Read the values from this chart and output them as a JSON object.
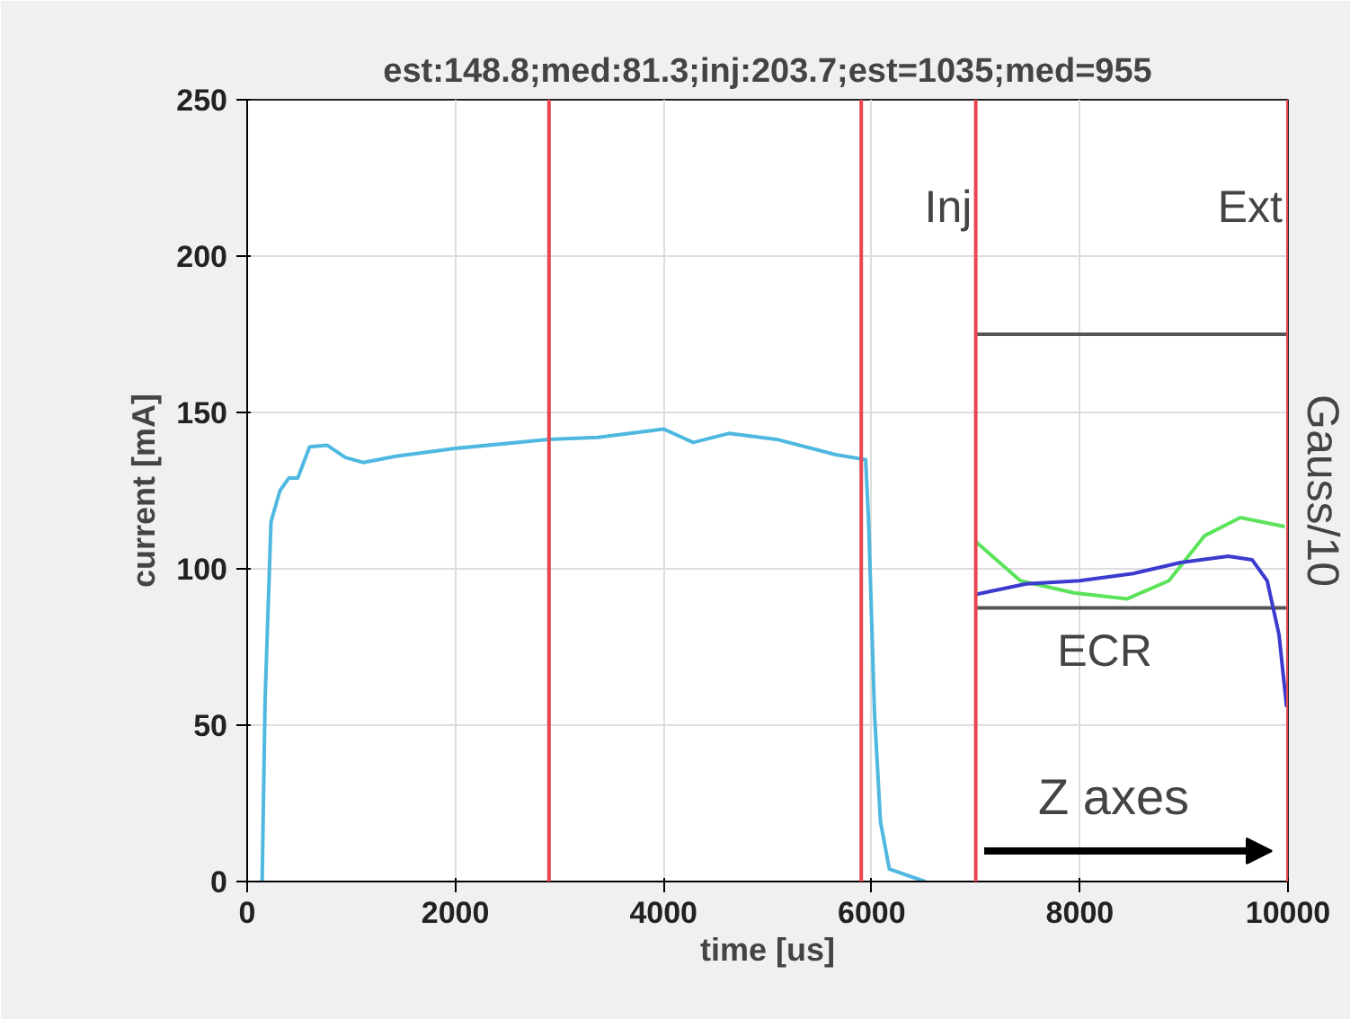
{
  "chart_data": {
    "type": "line",
    "title": "est:148.8;med:81.3;inj:203.7;est=1035;med=955",
    "xlabel": "time [us]",
    "ylabel": "current [mA]",
    "xlim": [
      0,
      10000
    ],
    "ylim": [
      0,
      250
    ],
    "xticks": [
      0,
      2000,
      4000,
      6000,
      8000,
      10000
    ],
    "yticks": [
      0,
      50,
      100,
      150,
      200,
      250
    ],
    "grid": true,
    "series": [
      {
        "color": "#4fb8e0",
        "x": [
          144,
          172,
          229,
          315,
          400,
          486,
          600,
          771,
          943,
          1114,
          1428,
          2000,
          2896,
          3371,
          4000,
          4286,
          4628,
          5085,
          5656,
          5942,
          5971,
          6027,
          6085,
          6170,
          6512
        ],
        "values": [
          0,
          58,
          115,
          125,
          129,
          129,
          139,
          139.5,
          135.6,
          134,
          136,
          138.5,
          141.4,
          142,
          144.7,
          140.4,
          143.3,
          141.4,
          136.5,
          134.9,
          115,
          54,
          19,
          4,
          0
        ]
      },
      {
        "color": "#555555",
        "x": [
          7000,
          10000
        ],
        "values": [
          175,
          175
        ]
      },
      {
        "color": "#555555",
        "x": [
          7000,
          10000
        ],
        "values": [
          87.5,
          87.5
        ]
      },
      {
        "color": "#5be35b",
        "x": [
          7000,
          7428,
          7942,
          8456,
          8856,
          9200,
          9542,
          9970
        ],
        "values": [
          108.7,
          96.2,
          92.3,
          90.4,
          96.2,
          110.6,
          116.4,
          113.5
        ]
      },
      {
        "color": "#3b3bcf",
        "x": [
          7000,
          7485,
          8000,
          8514,
          8970,
          9426,
          9655,
          9800,
          9914,
          9987
        ],
        "values": [
          91.8,
          95.2,
          96.2,
          98.5,
          102,
          104,
          102.9,
          96.2,
          78.9,
          55.8
        ]
      }
    ],
    "ref_lines": [
      {
        "axis": "x",
        "value": 2900,
        "color": "#e8474f"
      },
      {
        "axis": "x",
        "value": 5900,
        "color": "#e8474f"
      },
      {
        "axis": "x",
        "value": 7000,
        "color": "#e8474f"
      },
      {
        "axis": "x",
        "value": 10000,
        "color": "#e8474f"
      }
    ],
    "annotations": [
      "Inj",
      "Ext",
      "ECR",
      "Gauss/10",
      "Z axes"
    ]
  }
}
